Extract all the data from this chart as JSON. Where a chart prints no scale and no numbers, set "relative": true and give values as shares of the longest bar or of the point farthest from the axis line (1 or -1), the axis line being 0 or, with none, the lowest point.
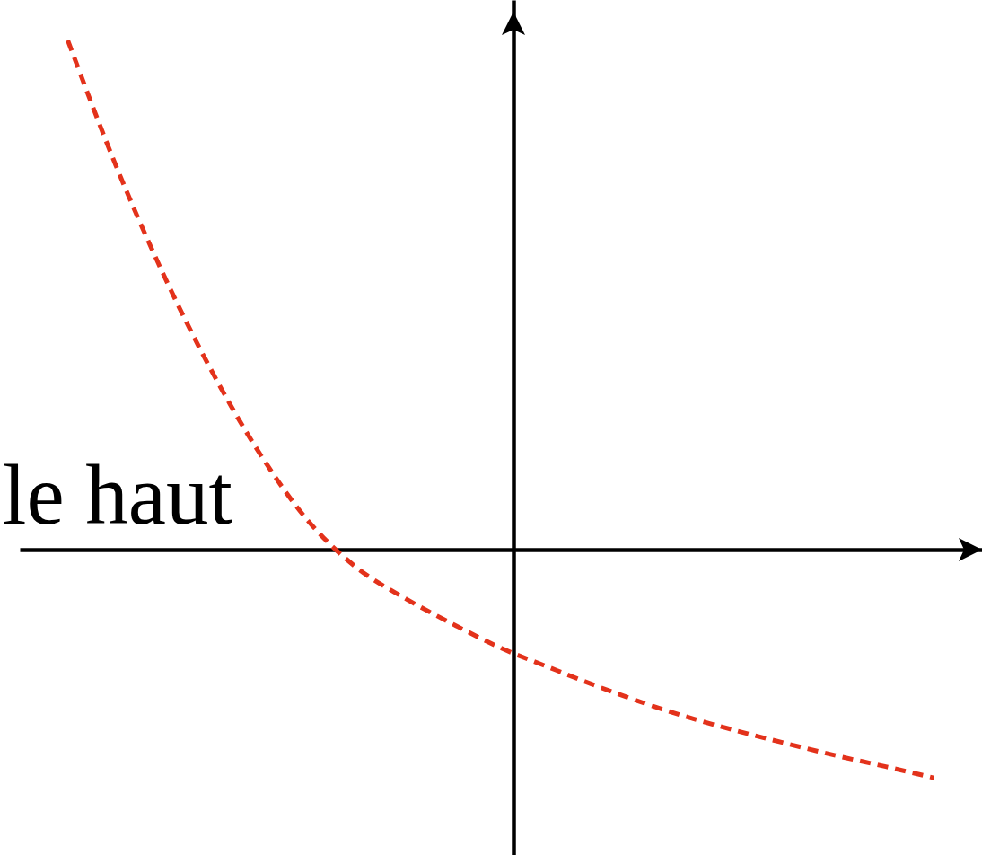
{
  "chart_data": {
    "type": "line",
    "relative": true,
    "line_style": "dashed",
    "categories": [
      null,
      null,
      null,
      null,
      null,
      null,
      null,
      null,
      null,
      null,
      null,
      null,
      null,
      null,
      null,
      null,
      null,
      null,
      null
    ],
    "series": [
      {
        "color": "#e3321b",
        "values": [
          1.0,
          0.754,
          0.538,
          0.349,
          0.187,
          0.056,
          -0.035,
          -0.095,
          -0.146,
          -0.193,
          -0.231,
          -0.268,
          -0.302,
          -0.332,
          -0.358,
          -0.382,
          -0.405,
          -0.426,
          -0.448
        ]
      }
    ],
    "annotations": [
      "le haut"
    ]
  }
}
